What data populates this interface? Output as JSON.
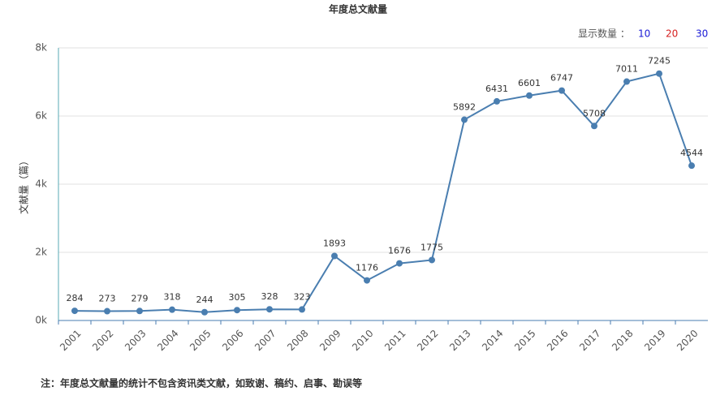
{
  "chart_data": {
    "type": "line",
    "title": "年度总文献量",
    "y_label": "文献量（篇）",
    "categories": [
      "2001",
      "2002",
      "2003",
      "2004",
      "2005",
      "2006",
      "2007",
      "2008",
      "2009",
      "2010",
      "2011",
      "2012",
      "2013",
      "2014",
      "2015",
      "2016",
      "2017",
      "2018",
      "2019",
      "2020"
    ],
    "values": [
      284,
      273,
      279,
      318,
      244,
      305,
      328,
      323,
      1893,
      1176,
      1676,
      1775,
      5892,
      6431,
      6601,
      6747,
      5708,
      7011,
      7245,
      4544
    ],
    "color": "#4a7eb0",
    "ylim": [
      0,
      8000
    ],
    "yticks": [
      {
        "value": 0,
        "label": "0k"
      },
      {
        "value": 2000,
        "label": "2k"
      },
      {
        "value": 4000,
        "label": "4k"
      },
      {
        "value": 6000,
        "label": "6k"
      },
      {
        "value": 8000,
        "label": "8k"
      }
    ],
    "grid": true
  },
  "controls": {
    "label": "显示数量 ：",
    "options": [
      10,
      20,
      30
    ]
  },
  "note": "注：年度总文献量的统计不包含资讯类文献，如致谢、稿约、启事、勘误等"
}
